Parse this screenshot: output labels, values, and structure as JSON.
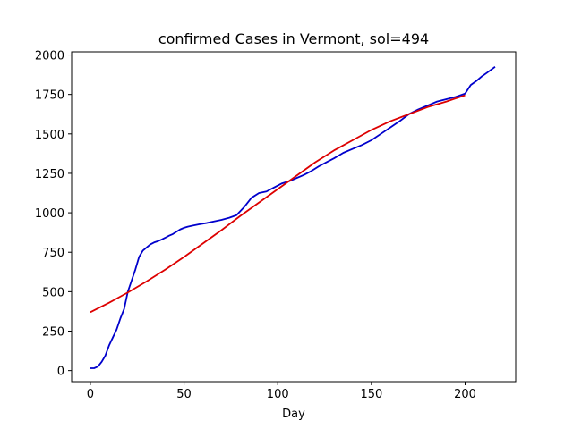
{
  "chart_data": {
    "type": "line",
    "title": "confirmed Cases in Vermont, sol=494",
    "xlabel": "Day",
    "ylabel": "",
    "xlim": [
      -10,
      227
    ],
    "ylim": [
      -70,
      2020
    ],
    "xticks": [
      0,
      50,
      100,
      150,
      200
    ],
    "yticks": [
      0,
      250,
      500,
      750,
      1000,
      1250,
      1500,
      1750,
      2000
    ],
    "grid": false,
    "series": [
      {
        "color": "#0000cc",
        "x": [
          0,
          2,
          4,
          6,
          8,
          10,
          12,
          14,
          16,
          18,
          20,
          22,
          24,
          26,
          28,
          30,
          32,
          34,
          36,
          38,
          40,
          42,
          44,
          46,
          48,
          50,
          52,
          55,
          58,
          62,
          66,
          70,
          74,
          78,
          82,
          86,
          90,
          94,
          98,
          102,
          106,
          110,
          114,
          118,
          122,
          126,
          130,
          135,
          140,
          145,
          150,
          155,
          160,
          165,
          170,
          175,
          180,
          185,
          190,
          195,
          200,
          203,
          206,
          209,
          212,
          216
        ],
        "y": [
          15,
          15,
          25,
          55,
          95,
          160,
          210,
          260,
          330,
          390,
          500,
          570,
          640,
          720,
          760,
          780,
          800,
          812,
          820,
          830,
          842,
          855,
          865,
          880,
          895,
          905,
          912,
          920,
          927,
          935,
          945,
          955,
          968,
          985,
          1035,
          1095,
          1125,
          1135,
          1160,
          1185,
          1200,
          1220,
          1240,
          1265,
          1295,
          1320,
          1345,
          1380,
          1405,
          1430,
          1460,
          1500,
          1540,
          1580,
          1625,
          1655,
          1680,
          1705,
          1720,
          1735,
          1755,
          1810,
          1835,
          1865,
          1890,
          1925
        ]
      },
      {
        "color": "#dd0000",
        "x": [
          0,
          10,
          20,
          30,
          40,
          50,
          60,
          70,
          80,
          90,
          100,
          110,
          120,
          130,
          140,
          150,
          160,
          170,
          180,
          190,
          200
        ],
        "y": [
          370,
          430,
          495,
          565,
          640,
          720,
          805,
          890,
          980,
          1065,
          1150,
          1235,
          1320,
          1395,
          1460,
          1525,
          1580,
          1625,
          1670,
          1705,
          1745
        ]
      }
    ]
  }
}
